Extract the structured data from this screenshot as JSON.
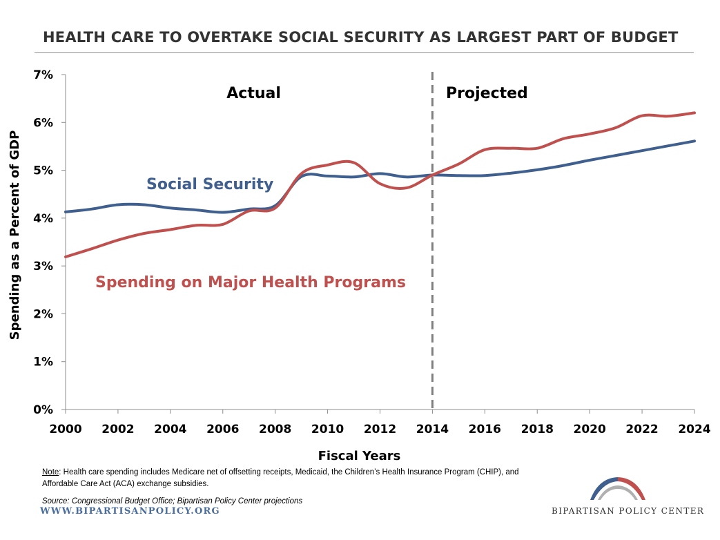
{
  "title": "HEALTH CARE TO OVERTAKE SOCIAL SECURITY AS LARGEST PART OF BUDGET",
  "colors": {
    "social_security": "#3f5f8f",
    "health": "#c0504d",
    "axis": "#8c8c8c",
    "divider": "#7f7f7f"
  },
  "chart_data": {
    "type": "line",
    "xlabel": "Fiscal Years",
    "ylabel": "Spending as a Percent of GDP",
    "xlim": [
      2000,
      2024
    ],
    "ylim": [
      0,
      7
    ],
    "x_ticks": [
      "2000",
      "2002",
      "2004",
      "2006",
      "2008",
      "2010",
      "2012",
      "2014",
      "2016",
      "2018",
      "2020",
      "2022",
      "2024"
    ],
    "y_ticks": [
      "0%",
      "1%",
      "2%",
      "3%",
      "4%",
      "5%",
      "6%",
      "7%"
    ],
    "regions": [
      {
        "label": "Actual",
        "x_center": 2009.5
      },
      {
        "label": "Projected",
        "x_center": 2018.4
      }
    ],
    "divider_x": 2014,
    "series": [
      {
        "name": "Social Security",
        "x": [
          2000,
          2001,
          2002,
          2003,
          2004,
          2005,
          2006,
          2007,
          2008,
          2009,
          2010,
          2011,
          2012,
          2013,
          2014,
          2015,
          2016,
          2017,
          2018,
          2019,
          2020,
          2021,
          2022,
          2023,
          2024
        ],
        "values": [
          4.13,
          4.19,
          4.28,
          4.28,
          4.21,
          4.17,
          4.12,
          4.19,
          4.26,
          4.87,
          4.88,
          4.86,
          4.93,
          4.86,
          4.9,
          4.89,
          4.89,
          4.94,
          5.01,
          5.1,
          5.21,
          5.31,
          5.41,
          5.51,
          5.61
        ]
      },
      {
        "name": "Spending on Major Health Programs",
        "x": [
          2000,
          2001,
          2002,
          2003,
          2004,
          2005,
          2006,
          2007,
          2008,
          2009,
          2010,
          2011,
          2012,
          2013,
          2014,
          2015,
          2016,
          2017,
          2018,
          2019,
          2020,
          2021,
          2022,
          2023,
          2024
        ],
        "values": [
          3.19,
          3.36,
          3.54,
          3.68,
          3.76,
          3.85,
          3.87,
          4.15,
          4.21,
          4.93,
          5.11,
          5.16,
          4.72,
          4.63,
          4.9,
          5.13,
          5.43,
          5.46,
          5.46,
          5.66,
          5.76,
          5.89,
          6.14,
          6.13,
          6.2
        ]
      }
    ]
  },
  "series_labels": {
    "social_security": "Social Security",
    "health": "Spending on Major Health Programs"
  },
  "note": {
    "label": "Note",
    "text": ": Health care spending includes Medicare net of offsetting receipts, Medicaid, the Children’s Health Insurance Program (CHIP), and Affordable Care Act (ACA) exchange subsidies."
  },
  "source": "Source: Congressional Budget Office; Bipartisan Policy Center projections",
  "website": "WWW.BIPARTISANPOLICY.ORG",
  "logo_text": "BIPARTISAN POLICY CENTER"
}
